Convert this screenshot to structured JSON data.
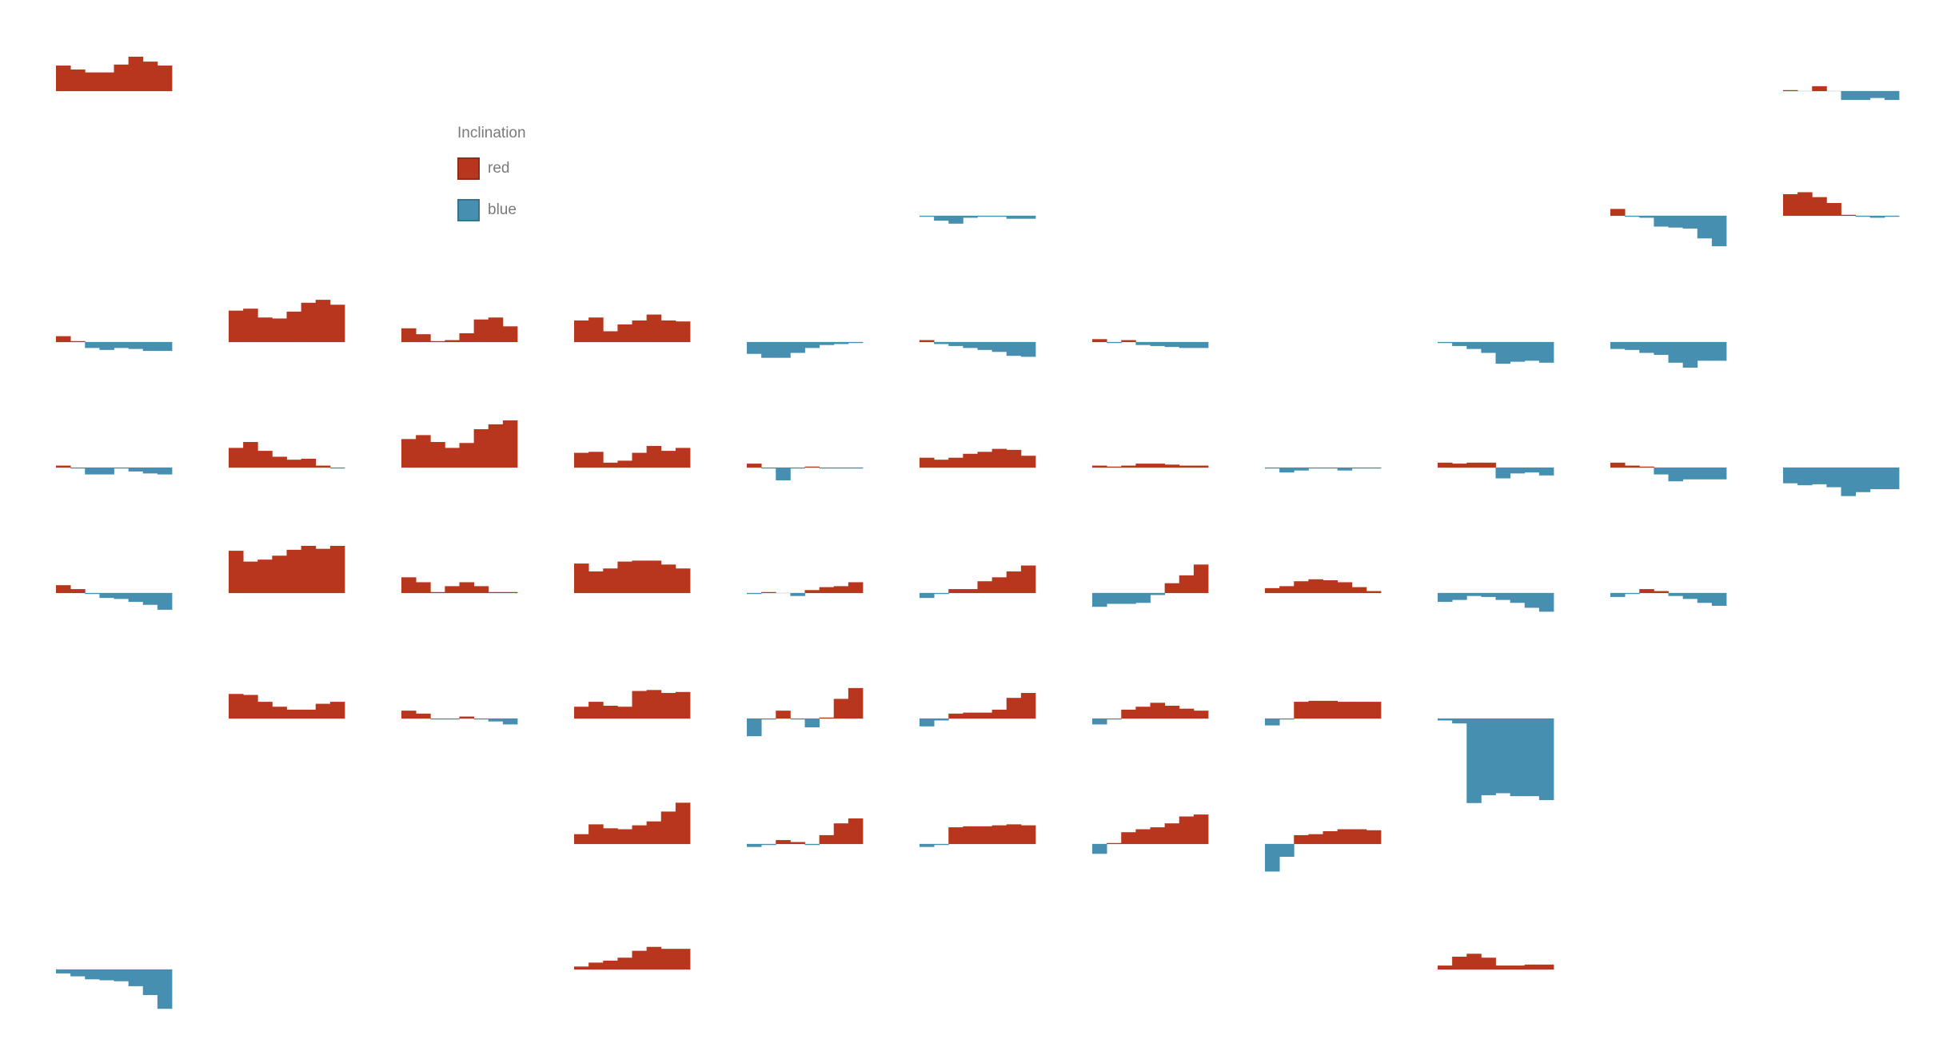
{
  "chart_data": {
    "type": "bar",
    "legend": {
      "title": "Inclination",
      "position": "top-left",
      "items": [
        {
          "label": "red",
          "color": "#b7361d"
        },
        {
          "label": "blue",
          "color": "#468fb0"
        }
      ]
    },
    "baseline_per_cell": true,
    "grid": false,
    "panels": [
      {
        "col": 0,
        "row": 0,
        "values": [
          26,
          22,
          19,
          19,
          27,
          35,
          30,
          26
        ]
      },
      {
        "col": 10,
        "row": 0,
        "values": [
          1,
          0,
          5,
          0,
          -9,
          -9,
          -7,
          -9
        ]
      },
      {
        "col": 10,
        "row": 1,
        "values": [
          22,
          24,
          19,
          13,
          1,
          -1,
          -2,
          -1
        ]
      },
      {
        "col": 5,
        "row": 1,
        "values": [
          -1,
          -5,
          -8,
          -2,
          -1,
          -1,
          -3,
          -3
        ]
      },
      {
        "col": 9,
        "row": 1,
        "values": [
          7,
          -1,
          -2,
          -11,
          -12,
          -13,
          -23,
          -31
        ]
      },
      {
        "col": 0,
        "row": 2,
        "values": [
          6,
          1,
          -6,
          -8,
          -6,
          -7,
          -9,
          -9
        ]
      },
      {
        "col": 1,
        "row": 2,
        "values": [
          32,
          34,
          25,
          24,
          31,
          40,
          43,
          38
        ]
      },
      {
        "col": 2,
        "row": 2,
        "values": [
          14,
          8,
          1,
          2,
          9,
          23,
          25,
          16
        ]
      },
      {
        "col": 3,
        "row": 2,
        "values": [
          22,
          25,
          11,
          18,
          22,
          28,
          22,
          21
        ]
      },
      {
        "col": 4,
        "row": 2,
        "values": [
          -12,
          -16,
          -16,
          -11,
          -6,
          -3,
          -2,
          -1
        ]
      },
      {
        "col": 5,
        "row": 2,
        "values": [
          2,
          -2,
          -4,
          -6,
          -8,
          -10,
          -14,
          -15
        ]
      },
      {
        "col": 6,
        "row": 2,
        "values": [
          3,
          -1,
          2,
          -3,
          -4,
          -5,
          -6,
          -6
        ]
      },
      {
        "col": 8,
        "row": 2,
        "values": [
          -1,
          -4,
          -7,
          -11,
          -22,
          -20,
          -19,
          -21
        ]
      },
      {
        "col": 9,
        "row": 2,
        "values": [
          -7,
          -8,
          -11,
          -13,
          -21,
          -26,
          -19,
          -19
        ]
      },
      {
        "col": 0,
        "row": 3,
        "values": [
          2,
          -1,
          -7,
          -7,
          -1,
          -4,
          -6,
          -7
        ]
      },
      {
        "col": 1,
        "row": 3,
        "values": [
          20,
          26,
          17,
          11,
          8,
          9,
          2,
          -1
        ]
      },
      {
        "col": 2,
        "row": 3,
        "values": [
          29,
          33,
          26,
          20,
          25,
          39,
          44,
          48
        ]
      },
      {
        "col": 3,
        "row": 3,
        "values": [
          15,
          16,
          5,
          7,
          15,
          22,
          17,
          20
        ]
      },
      {
        "col": 4,
        "row": 3,
        "values": [
          4,
          -1,
          -13,
          -1,
          1,
          -1,
          -1,
          -1
        ]
      },
      {
        "col": 5,
        "row": 3,
        "values": [
          10,
          8,
          10,
          14,
          16,
          19,
          18,
          12
        ]
      },
      {
        "col": 6,
        "row": 3,
        "values": [
          2,
          1,
          2,
          4,
          4,
          3,
          2,
          2
        ]
      },
      {
        "col": 7,
        "row": 3,
        "values": [
          -1,
          -5,
          -3,
          -1,
          -1,
          -3,
          -1,
          -1
        ]
      },
      {
        "col": 8,
        "row": 3,
        "values": [
          5,
          4,
          5,
          5,
          -11,
          -6,
          -5,
          -8
        ]
      },
      {
        "col": 9,
        "row": 3,
        "values": [
          5,
          2,
          1,
          -7,
          -14,
          -12,
          -12,
          -12
        ]
      },
      {
        "col": 10,
        "row": 3,
        "values": [
          -16,
          -18,
          -17,
          -20,
          -29,
          -25,
          -22,
          -22
        ]
      },
      {
        "col": 0,
        "row": 4,
        "values": [
          8,
          4,
          -1,
          -5,
          -6,
          -9,
          -12,
          -17
        ]
      },
      {
        "col": 1,
        "row": 4,
        "values": [
          43,
          32,
          34,
          38,
          44,
          48,
          45,
          48
        ]
      },
      {
        "col": 2,
        "row": 4,
        "values": [
          16,
          11,
          1,
          7,
          11,
          7,
          1,
          1
        ]
      },
      {
        "col": 3,
        "row": 4,
        "values": [
          30,
          22,
          25,
          32,
          33,
          33,
          29,
          25
        ]
      },
      {
        "col": 4,
        "row": 4,
        "values": [
          -1,
          1,
          0,
          -3,
          3,
          6,
          7,
          11
        ]
      },
      {
        "col": 5,
        "row": 4,
        "values": [
          -5,
          -1,
          4,
          4,
          12,
          16,
          22,
          28
        ]
      },
      {
        "col": 6,
        "row": 4,
        "values": [
          -14,
          -11,
          -11,
          -10,
          -2,
          10,
          18,
          29
        ]
      },
      {
        "col": 7,
        "row": 4,
        "values": [
          5,
          7,
          12,
          14,
          13,
          11,
          6,
          2
        ]
      },
      {
        "col": 8,
        "row": 4,
        "values": [
          -9,
          -7,
          -3,
          -4,
          -7,
          -10,
          -15,
          -19
        ]
      },
      {
        "col": 9,
        "row": 4,
        "values": [
          -4,
          -1,
          4,
          2,
          -3,
          -6,
          -10,
          -13
        ]
      },
      {
        "col": 1,
        "row": 5,
        "values": [
          25,
          24,
          17,
          12,
          9,
          9,
          15,
          17
        ]
      },
      {
        "col": 2,
        "row": 5,
        "values": [
          8,
          5,
          -1,
          -1,
          2,
          -1,
          -3,
          -6
        ]
      },
      {
        "col": 3,
        "row": 5,
        "values": [
          12,
          17,
          13,
          12,
          28,
          29,
          26,
          27
        ]
      },
      {
        "col": 4,
        "row": 5,
        "values": [
          -18,
          -1,
          8,
          -1,
          -9,
          1,
          20,
          31
        ]
      },
      {
        "col": 5,
        "row": 5,
        "values": [
          -8,
          -2,
          5,
          6,
          6,
          9,
          21,
          26
        ]
      },
      {
        "col": 6,
        "row": 5,
        "values": [
          -6,
          -1,
          9,
          12,
          16,
          13,
          10,
          8
        ]
      },
      {
        "col": 7,
        "row": 5,
        "values": [
          -7,
          -1,
          17,
          18,
          18,
          17,
          17,
          17
        ]
      },
      {
        "col": 8,
        "row": 5,
        "values": [
          -2,
          -5,
          -86,
          -78,
          -76,
          -79,
          -79,
          -83
        ]
      },
      {
        "col": 3,
        "row": 6,
        "values": [
          10,
          20,
          16,
          15,
          19,
          23,
          33,
          42
        ]
      },
      {
        "col": 4,
        "row": 6,
        "values": [
          -3,
          -1,
          4,
          2,
          -1,
          9,
          21,
          26
        ]
      },
      {
        "col": 5,
        "row": 6,
        "values": [
          -3,
          -1,
          17,
          18,
          18,
          19,
          20,
          19
        ]
      },
      {
        "col": 6,
        "row": 6,
        "values": [
          -10,
          1,
          12,
          15,
          17,
          21,
          28,
          30
        ]
      },
      {
        "col": 7,
        "row": 6,
        "values": [
          -28,
          -13,
          9,
          10,
          13,
          15,
          15,
          14
        ]
      },
      {
        "col": 0,
        "row": 7,
        "values": [
          -4,
          -7,
          -10,
          -11,
          -12,
          -17,
          -26,
          -40
        ]
      },
      {
        "col": 3,
        "row": 7,
        "values": [
          3,
          7,
          9,
          12,
          19,
          23,
          21,
          21
        ]
      },
      {
        "col": 8,
        "row": 7,
        "values": [
          4,
          13,
          16,
          12,
          4,
          4,
          5,
          5
        ]
      }
    ]
  }
}
